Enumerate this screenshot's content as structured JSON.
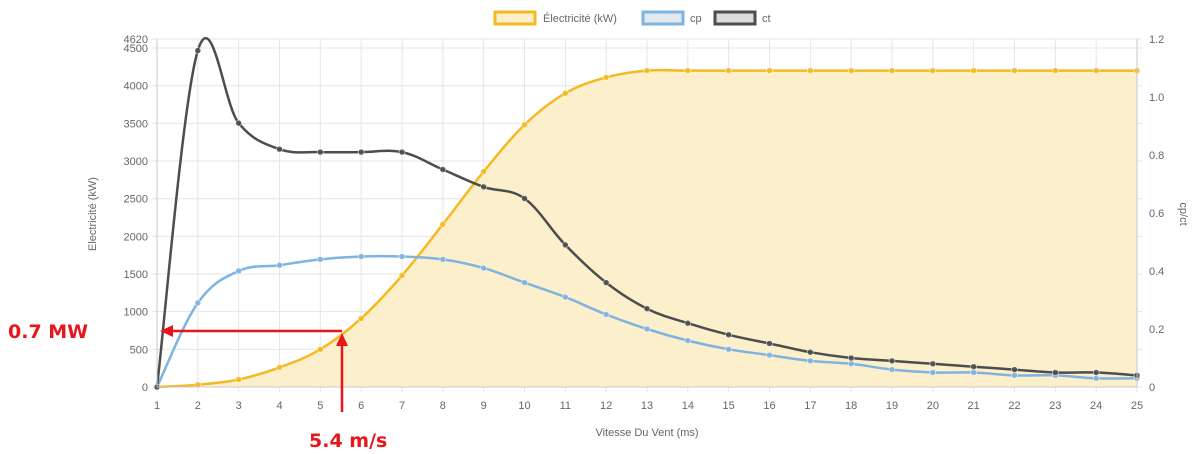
{
  "chart_data": {
    "type": "line",
    "xlabel": "Vitesse Du Vent (ms)",
    "ylabel_left": "Electricité (kW)",
    "ylabel_right": "cp/ct",
    "x": [
      1,
      2,
      3,
      4,
      5,
      6,
      7,
      8,
      9,
      10,
      11,
      12,
      13,
      14,
      15,
      16,
      17,
      18,
      19,
      20,
      21,
      22,
      23,
      24,
      25
    ],
    "y_left": {
      "min": 0,
      "max": 4620,
      "ticks": [
        0,
        500,
        1000,
        1500,
        2000,
        2500,
        3000,
        3500,
        4000,
        4500,
        4620
      ]
    },
    "y_right": {
      "min": 0,
      "max": 1.2,
      "ticks": [
        "0",
        "0.2",
        "0.4",
        "0.6",
        "0.8",
        "1.0",
        "1.2"
      ]
    },
    "grid": true,
    "legend_position": "top",
    "series": [
      {
        "name": "Électricité (kW)",
        "axis": "left",
        "color": "#f5b921",
        "fill": "#fcefcc",
        "values": [
          0,
          30,
          100,
          260,
          500,
          910,
          1480,
          2160,
          2860,
          3480,
          3900,
          4110,
          4200,
          4200,
          4200,
          4200,
          4200,
          4200,
          4200,
          4200,
          4200,
          4200,
          4200,
          4200,
          4200
        ]
      },
      {
        "name": "cp",
        "axis": "right",
        "color": "#7fb3e0",
        "values": [
          0,
          0.29,
          0.4,
          0.42,
          0.44,
          0.45,
          0.45,
          0.44,
          0.41,
          0.36,
          0.31,
          0.25,
          0.2,
          0.16,
          0.13,
          0.11,
          0.09,
          0.08,
          0.06,
          0.05,
          0.05,
          0.04,
          0.04,
          0.03,
          0.03
        ]
      },
      {
        "name": "ct",
        "axis": "right",
        "color": "#4d4d4d",
        "values": [
          0,
          1.16,
          0.91,
          0.82,
          0.81,
          0.81,
          0.81,
          0.75,
          0.69,
          0.65,
          0.49,
          0.36,
          0.27,
          0.22,
          0.18,
          0.15,
          0.12,
          0.1,
          0.09,
          0.08,
          0.07,
          0.06,
          0.05,
          0.05,
          0.04
        ]
      }
    ],
    "annotations": [
      {
        "text": "0.7 MW",
        "color": "#e8161b"
      },
      {
        "text": "5.4 m/s",
        "color": "#e8161b"
      }
    ]
  }
}
